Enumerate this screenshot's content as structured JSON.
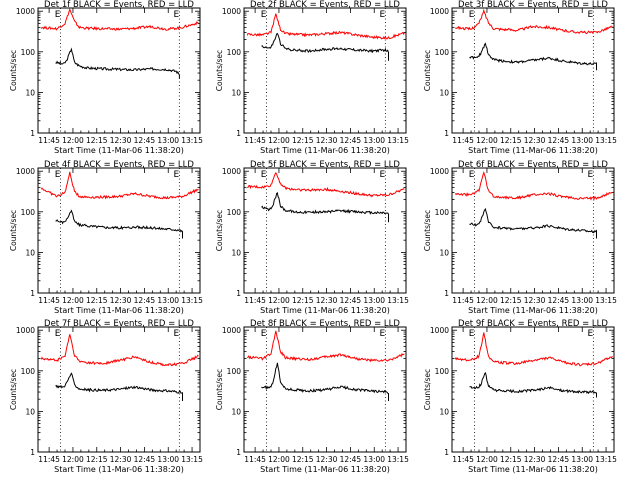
{
  "start_time_label": "Start Time (11-Mar-06 11:38:20)",
  "ylabel": "Counts/sec",
  "x_tick_labels": [
    "11:45",
    "12:00",
    "12:15",
    "12:30",
    "12:45",
    "13:00",
    "13:15"
  ],
  "y_tick_labels": [
    "1",
    "10",
    "100",
    "1000"
  ],
  "marker_letter": "E",
  "colors": {
    "events": "#000000",
    "lld": "#ff0000",
    "axis": "#000000"
  },
  "chart_data": [
    {
      "type": "line",
      "title": "Det 1f BLACK = Events, RED = LLD",
      "ylabel": "Counts/sec",
      "xlim_min": [
        -7,
        95
      ],
      "ylim": [
        1,
        1200
      ],
      "y_scale": "log",
      "x_ticks_min": [
        0,
        15,
        30,
        45,
        60,
        75,
        90
      ],
      "x_tick_labels": [
        "11:45",
        "12:00",
        "12:15",
        "12:30",
        "12:45",
        "13:00",
        "13:15"
      ],
      "markers_min": [
        7.2,
        82
      ],
      "series": [
        {
          "name": "BLACK = Events",
          "color": "#000000",
          "x_min": [
            4,
            9,
            11,
            14,
            16,
            19,
            24,
            34,
            44,
            54,
            64,
            74,
            80,
            82,
            82
          ],
          "y": [
            55,
            50,
            60,
            120,
            55,
            45,
            40,
            38,
            37,
            36,
            38,
            37,
            33,
            28,
            22
          ]
        },
        {
          "name": "RED = LLD",
          "color": "#ff0000",
          "x_min": [
            -5,
            5,
            10,
            13,
            16,
            19,
            24,
            34,
            44,
            54,
            64,
            74,
            84,
            94
          ],
          "y": [
            400,
            370,
            500,
            1100,
            560,
            400,
            380,
            370,
            360,
            380,
            420,
            360,
            400,
            520
          ]
        }
      ]
    },
    {
      "type": "line",
      "title": "Det 2f BLACK = Events, RED = LLD",
      "ylabel": "Counts/sec",
      "xlim_min": [
        -7,
        95
      ],
      "ylim": [
        1,
        1200
      ],
      "y_scale": "log",
      "x_ticks_min": [
        0,
        15,
        30,
        45,
        60,
        75,
        90
      ],
      "x_tick_labels": [
        "11:45",
        "12:00",
        "12:15",
        "12:30",
        "12:45",
        "13:00",
        "13:15"
      ],
      "markers_min": [
        7.2,
        82
      ],
      "series": [
        {
          "name": "BLACK = Events",
          "color": "#000000",
          "x_min": [
            4,
            9,
            11,
            14,
            16,
            19,
            24,
            34,
            44,
            54,
            64,
            74,
            82,
            84,
            84
          ],
          "y": [
            140,
            120,
            150,
            290,
            160,
            120,
            110,
            105,
            115,
            120,
            110,
            105,
            110,
            100,
            60
          ]
        },
        {
          "name": "RED = LLD",
          "color": "#ff0000",
          "x_min": [
            -5,
            5,
            10,
            13,
            16,
            19,
            24,
            34,
            44,
            54,
            64,
            74,
            84,
            94
          ],
          "y": [
            270,
            260,
            300,
            850,
            360,
            280,
            270,
            260,
            280,
            300,
            260,
            230,
            220,
            290
          ]
        }
      ]
    },
    {
      "type": "line",
      "title": "Det 3f BLACK = Events, RED = LLD",
      "ylabel": "Counts/sec",
      "xlim_min": [
        -7,
        95
      ],
      "ylim": [
        1,
        1200
      ],
      "y_scale": "log",
      "x_ticks_min": [
        0,
        15,
        30,
        45,
        60,
        75,
        90
      ],
      "x_tick_labels": [
        "11:45",
        "12:00",
        "12:15",
        "12:30",
        "12:45",
        "13:00",
        "13:15"
      ],
      "markers_min": [
        7.2,
        82
      ],
      "series": [
        {
          "name": "BLACK = Events",
          "color": "#000000",
          "x_min": [
            4,
            9,
            11,
            14,
            16,
            19,
            24,
            34,
            44,
            54,
            64,
            74,
            84,
            84
          ],
          "y": [
            75,
            70,
            90,
            165,
            85,
            65,
            60,
            55,
            62,
            70,
            58,
            52,
            50,
            35
          ]
        },
        {
          "name": "RED = LLD",
          "color": "#ff0000",
          "x_min": [
            -5,
            5,
            10,
            13,
            16,
            19,
            24,
            34,
            44,
            54,
            64,
            74,
            84,
            94
          ],
          "y": [
            400,
            360,
            500,
            1000,
            520,
            380,
            360,
            340,
            420,
            400,
            330,
            300,
            300,
            420
          ]
        }
      ]
    },
    {
      "type": "line",
      "title": "Det 4f BLACK = Events, RED = LLD",
      "ylabel": "Counts/sec",
      "xlim_min": [
        -7,
        95
      ],
      "ylim": [
        1,
        1200
      ],
      "y_scale": "log",
      "x_ticks_min": [
        0,
        15,
        30,
        45,
        60,
        75,
        90
      ],
      "x_tick_labels": [
        "11:45",
        "12:00",
        "12:15",
        "12:30",
        "12:45",
        "13:00",
        "13:15"
      ],
      "markers_min": [
        7.2,
        82
      ],
      "series": [
        {
          "name": "BLACK = Events",
          "color": "#000000",
          "x_min": [
            4,
            9,
            11,
            14,
            16,
            19,
            24,
            34,
            44,
            54,
            64,
            74,
            82,
            84,
            84
          ],
          "y": [
            60,
            55,
            65,
            110,
            58,
            48,
            45,
            42,
            40,
            42,
            40,
            38,
            36,
            32,
            22
          ]
        },
        {
          "name": "RED = LLD",
          "color": "#ff0000",
          "x_min": [
            -5,
            5,
            10,
            13,
            16,
            19,
            24,
            34,
            44,
            54,
            64,
            74,
            84,
            94
          ],
          "y": [
            380,
            240,
            300,
            900,
            320,
            240,
            230,
            230,
            240,
            280,
            240,
            220,
            240,
            360
          ]
        }
      ]
    },
    {
      "type": "line",
      "title": "Det 5f BLACK = Events, RED = LLD",
      "ylabel": "Counts/sec",
      "xlim_min": [
        -7,
        95
      ],
      "ylim": [
        1,
        1200
      ],
      "y_scale": "log",
      "x_ticks_min": [
        0,
        15,
        30,
        45,
        60,
        75,
        90
      ],
      "x_tick_labels": [
        "11:45",
        "12:00",
        "12:15",
        "12:30",
        "12:45",
        "13:00",
        "13:15"
      ],
      "markers_min": [
        7.2,
        82
      ],
      "series": [
        {
          "name": "BLACK = Events",
          "color": "#000000",
          "x_min": [
            4,
            9,
            11,
            14,
            16,
            19,
            24,
            34,
            44,
            54,
            64,
            74,
            82,
            84,
            84
          ],
          "y": [
            130,
            110,
            140,
            300,
            140,
            110,
            100,
            98,
            100,
            105,
            100,
            95,
            95,
            90,
            55
          ]
        },
        {
          "name": "RED = LLD",
          "color": "#ff0000",
          "x_min": [
            -5,
            5,
            10,
            13,
            16,
            19,
            24,
            34,
            44,
            54,
            64,
            74,
            84,
            94
          ],
          "y": [
            420,
            400,
            450,
            950,
            500,
            380,
            360,
            340,
            360,
            320,
            280,
            250,
            260,
            360
          ]
        }
      ]
    },
    {
      "type": "line",
      "title": "Det 6f BLACK = Events, RED = LLD",
      "ylabel": "Counts/sec",
      "xlim_min": [
        -7,
        95
      ],
      "ylim": [
        1,
        1200
      ],
      "y_scale": "log",
      "x_ticks_min": [
        0,
        15,
        30,
        45,
        60,
        75,
        90
      ],
      "x_tick_labels": [
        "11:45",
        "12:00",
        "12:15",
        "12:30",
        "12:45",
        "13:00",
        "13:15"
      ],
      "markers_min": [
        7.2,
        82
      ],
      "series": [
        {
          "name": "BLACK = Events",
          "color": "#000000",
          "x_min": [
            4,
            9,
            11,
            14,
            16,
            19,
            24,
            34,
            44,
            54,
            64,
            74,
            84,
            84
          ],
          "y": [
            50,
            48,
            60,
            120,
            55,
            42,
            40,
            38,
            40,
            45,
            38,
            35,
            32,
            22
          ]
        },
        {
          "name": "RED = LLD",
          "color": "#ff0000",
          "x_min": [
            -5,
            5,
            10,
            13,
            16,
            19,
            24,
            34,
            44,
            54,
            64,
            74,
            84,
            94
          ],
          "y": [
            280,
            260,
            340,
            950,
            330,
            240,
            230,
            220,
            260,
            280,
            230,
            210,
            220,
            300
          ]
        }
      ]
    },
    {
      "type": "line",
      "title": "Det 7f BLACK = Events, RED = LLD",
      "ylabel": "Counts/sec",
      "xlim_min": [
        -7,
        95
      ],
      "ylim": [
        1,
        1200
      ],
      "y_scale": "log",
      "x_ticks_min": [
        0,
        15,
        30,
        45,
        60,
        75,
        90
      ],
      "x_tick_labels": [
        "11:45",
        "12:00",
        "12:15",
        "12:30",
        "12:45",
        "13:00",
        "13:15"
      ],
      "markers_min": [
        7.2,
        82
      ],
      "series": [
        {
          "name": "BLACK = Events",
          "color": "#000000",
          "x_min": [
            4,
            9,
            11,
            14,
            16,
            19,
            24,
            34,
            44,
            54,
            64,
            74,
            82,
            84,
            84
          ],
          "y": [
            42,
            40,
            50,
            88,
            45,
            36,
            34,
            33,
            35,
            40,
            34,
            32,
            30,
            28,
            18
          ]
        },
        {
          "name": "RED = LLD",
          "color": "#ff0000",
          "x_min": [
            -5,
            5,
            10,
            13,
            16,
            19,
            24,
            34,
            44,
            54,
            64,
            74,
            84,
            94
          ],
          "y": [
            200,
            180,
            230,
            800,
            240,
            170,
            160,
            150,
            180,
            220,
            160,
            140,
            150,
            230
          ]
        }
      ]
    },
    {
      "type": "line",
      "title": "Det 8f BLACK = Events, RED = LLD",
      "ylabel": "Counts/sec",
      "xlim_min": [
        -7,
        95
      ],
      "ylim": [
        1,
        1200
      ],
      "y_scale": "log",
      "x_ticks_min": [
        0,
        15,
        30,
        45,
        60,
        75,
        90
      ],
      "x_tick_labels": [
        "11:45",
        "12:00",
        "12:15",
        "12:30",
        "12:45",
        "13:00",
        "13:15"
      ],
      "markers_min": [
        7.2,
        82
      ],
      "series": [
        {
          "name": "BLACK = Events",
          "color": "#000000",
          "x_min": [
            4,
            9,
            11,
            14,
            16,
            19,
            24,
            34,
            44,
            54,
            64,
            74,
            82,
            84,
            84
          ],
          "y": [
            40,
            38,
            48,
            160,
            55,
            36,
            34,
            32,
            34,
            40,
            34,
            32,
            30,
            28,
            18
          ]
        },
        {
          "name": "RED = LLD",
          "color": "#ff0000",
          "x_min": [
            -5,
            5,
            10,
            13,
            16,
            19,
            24,
            34,
            44,
            54,
            64,
            74,
            84,
            94
          ],
          "y": [
            220,
            200,
            260,
            950,
            300,
            210,
            200,
            190,
            220,
            250,
            200,
            180,
            180,
            260
          ]
        }
      ]
    },
    {
      "type": "line",
      "title": "Det 9f BLACK = Events, RED = LLD",
      "ylabel": "Counts/sec",
      "xlim_min": [
        -7,
        95
      ],
      "ylim": [
        1,
        1200
      ],
      "y_scale": "log",
      "x_ticks_min": [
        0,
        15,
        30,
        45,
        60,
        75,
        90
      ],
      "x_tick_labels": [
        "11:45",
        "12:00",
        "12:15",
        "12:30",
        "12:45",
        "13:00",
        "13:15"
      ],
      "markers_min": [
        7.2,
        82
      ],
      "series": [
        {
          "name": "BLACK = Events",
          "color": "#000000",
          "x_min": [
            4,
            9,
            11,
            14,
            16,
            19,
            24,
            34,
            44,
            54,
            64,
            74,
            84,
            84
          ],
          "y": [
            40,
            38,
            45,
            90,
            42,
            34,
            32,
            31,
            33,
            38,
            32,
            30,
            30,
            22
          ]
        },
        {
          "name": "RED = LLD",
          "color": "#ff0000",
          "x_min": [
            -5,
            5,
            10,
            13,
            16,
            19,
            24,
            34,
            44,
            54,
            64,
            74,
            84,
            94
          ],
          "y": [
            200,
            180,
            230,
            850,
            230,
            170,
            160,
            150,
            180,
            210,
            160,
            140,
            150,
            230
          ]
        }
      ]
    }
  ]
}
